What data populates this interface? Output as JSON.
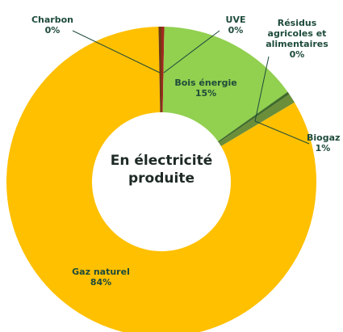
{
  "chart_data": {
    "type": "donut",
    "title": "En électricité produite",
    "categories": [
      "UVE",
      "Bois énergie",
      "Résidus agricoles et alimentaires",
      "Biogaz",
      "Gaz naturel",
      "Charbon"
    ],
    "values": [
      0.3,
      15,
      0.3,
      1,
      84,
      0.3
    ],
    "value_labels": [
      "0%",
      "15%",
      "0%",
      "1%",
      "84%",
      "0%"
    ],
    "colors": [
      "#a0281e",
      "#92d050",
      "#3f6b2a",
      "#6b8e3a",
      "#ffc000",
      "#6b3a12"
    ]
  }
}
